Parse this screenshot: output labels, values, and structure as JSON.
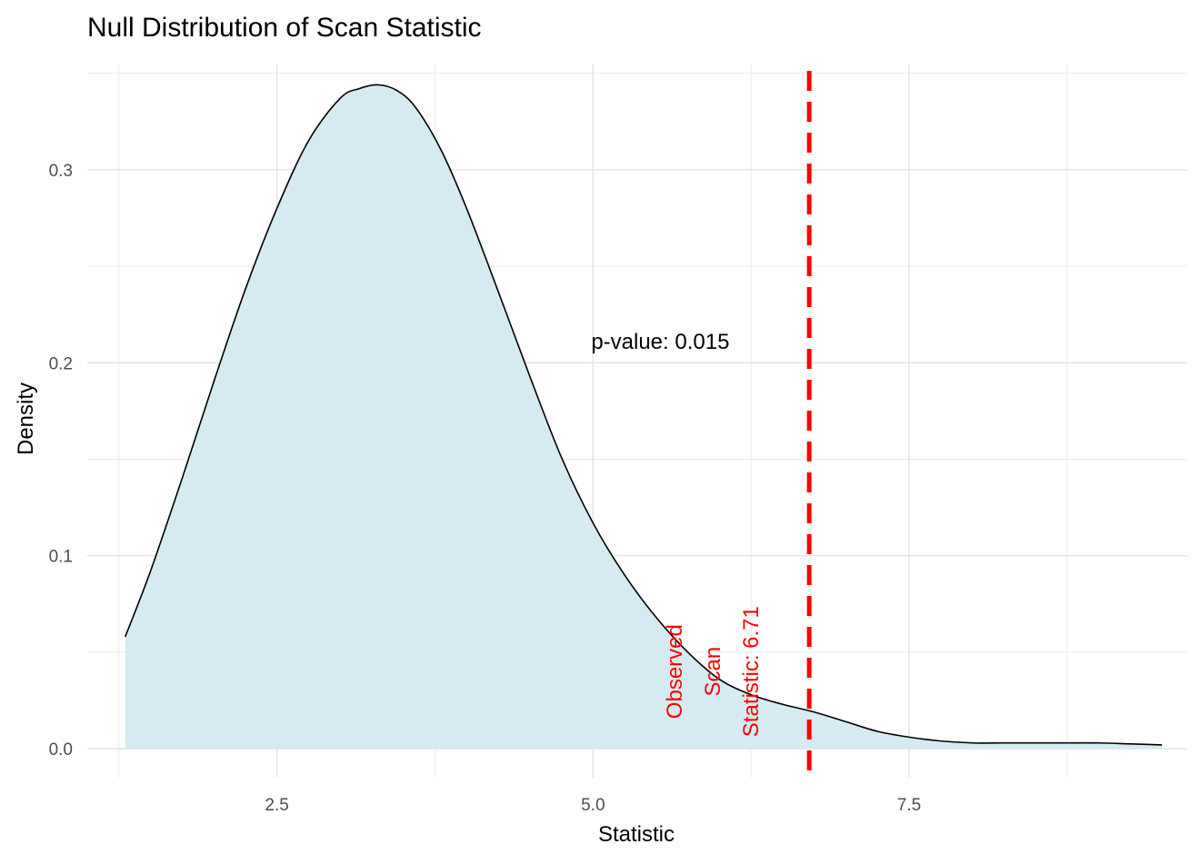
{
  "chart_data": {
    "type": "area",
    "title": "Null Distribution of Scan Statistic",
    "xlabel": "Statistic",
    "ylabel": "Density",
    "xlim": [
      1.0,
      9.7
    ],
    "ylim": [
      -0.015,
      0.355
    ],
    "x_ticks": [
      2.5,
      5.0,
      7.5
    ],
    "x_tick_labels": [
      "2.5",
      "5.0",
      "7.5"
    ],
    "y_ticks": [
      0.0,
      0.1,
      0.2,
      0.3
    ],
    "y_tick_labels": [
      "0.0",
      "0.1",
      "0.2",
      "0.3"
    ],
    "grid": true,
    "fill_color": "#d6eaf2",
    "line_color": "#000000",
    "series": [
      {
        "x": [
          1.3,
          1.5,
          1.75,
          2.0,
          2.25,
          2.5,
          2.75,
          3.0,
          3.15,
          3.3,
          3.45,
          3.6,
          3.8,
          4.0,
          4.25,
          4.5,
          4.75,
          5.0,
          5.25,
          5.5,
          5.75,
          6.0,
          6.25,
          6.5,
          6.75,
          7.0,
          7.25,
          7.5,
          7.75,
          8.0,
          8.25,
          8.5,
          8.75,
          9.0,
          9.25,
          9.5
        ],
        "y": [
          0.058,
          0.092,
          0.14,
          0.19,
          0.238,
          0.28,
          0.315,
          0.337,
          0.342,
          0.344,
          0.341,
          0.332,
          0.31,
          0.28,
          0.237,
          0.193,
          0.151,
          0.117,
          0.09,
          0.068,
          0.05,
          0.036,
          0.028,
          0.023,
          0.019,
          0.014,
          0.009,
          0.006,
          0.004,
          0.003,
          0.003,
          0.003,
          0.003,
          0.003,
          0.0025,
          0.002
        ]
      }
    ],
    "annotations": {
      "p_value_text": "p-value: 0.015",
      "p_value_position": [
        5.0,
        0.21
      ],
      "observed_value": 6.71,
      "observed_line_color": "#ff0000",
      "observed_label_lines": [
        "Observed",
        "Scan",
        "Statistic: 6.71"
      ]
    }
  }
}
